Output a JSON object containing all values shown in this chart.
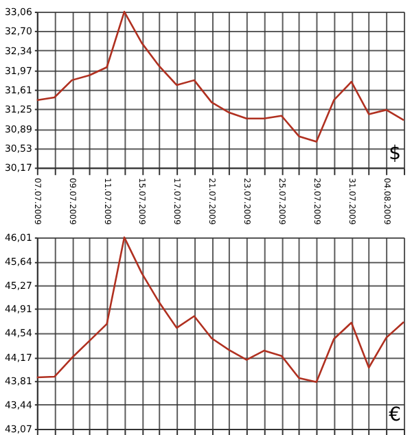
{
  "chart_data": [
    {
      "type": "line",
      "categories": [
        "07.07.2009",
        null,
        "09.07.2009",
        null,
        "11.07.2009",
        null,
        "15.07.2009",
        null,
        "17.07.2009",
        null,
        "21.07.2009",
        null,
        "23.07.2009",
        null,
        "25.07.2009",
        null,
        "29.07.2009",
        null,
        "31.07.2009",
        null,
        "04.08.2009",
        null
      ],
      "series": [
        {
          "color": "#b03020",
          "values": [
            31.42,
            31.47,
            31.79,
            31.88,
            32.03,
            33.06,
            32.48,
            32.05,
            31.7,
            31.79,
            31.38,
            31.19,
            31.08,
            31.08,
            31.13,
            30.75,
            30.65,
            31.42,
            31.76,
            31.16,
            31.24,
            31.05
          ]
        }
      ],
      "ylim": [
        30.17,
        33.06
      ],
      "yticks": [
        {
          "value": 30.17,
          "label": "30,17"
        },
        {
          "value": 30.53,
          "label": "30,53"
        },
        {
          "value": 30.89,
          "label": "30,89"
        },
        {
          "value": 31.25,
          "label": "31,25"
        },
        {
          "value": 31.61,
          "label": "31,61"
        },
        {
          "value": 31.97,
          "label": "31,97"
        },
        {
          "value": 32.34,
          "label": "32,34"
        },
        {
          "value": 32.7,
          "label": "32,70"
        },
        {
          "value": 33.06,
          "label": "33,06"
        }
      ],
      "grid": true,
      "annotations": [
        "$"
      ]
    },
    {
      "type": "line",
      "categories": [
        "07.07.2009",
        null,
        "09.07.2009",
        null,
        "11.07.2009",
        null,
        "15.07.2009",
        null,
        "17.07.2009",
        null,
        "21.07.2009",
        null,
        "23.07.2009",
        null,
        "25.07.2009",
        null,
        "29.07.2009",
        null,
        "31.07.2009",
        null,
        "04.08.2009",
        null
      ],
      "series": [
        {
          "color": "#b03020",
          "values": [
            43.86,
            43.87,
            44.16,
            44.42,
            44.68,
            46.01,
            45.46,
            45.01,
            44.62,
            44.8,
            44.46,
            44.28,
            44.13,
            44.27,
            44.19,
            43.85,
            43.79,
            44.45,
            44.7,
            44.01,
            44.47,
            44.71
          ]
        }
      ],
      "ylim": [
        43.07,
        46.01
      ],
      "yticks": [
        {
          "value": 43.07,
          "label": "43,07"
        },
        {
          "value": 43.44,
          "label": "43,44"
        },
        {
          "value": 43.81,
          "label": "43,81"
        },
        {
          "value": 44.17,
          "label": "44,17"
        },
        {
          "value": 44.54,
          "label": "44,54"
        },
        {
          "value": 44.91,
          "label": "44,91"
        },
        {
          "value": 45.27,
          "label": "45,27"
        },
        {
          "value": 45.64,
          "label": "45,64"
        },
        {
          "value": 46.01,
          "label": "46,01"
        }
      ],
      "grid": true,
      "tick_labels": "y",
      "annotations": [
        "€"
      ]
    }
  ]
}
